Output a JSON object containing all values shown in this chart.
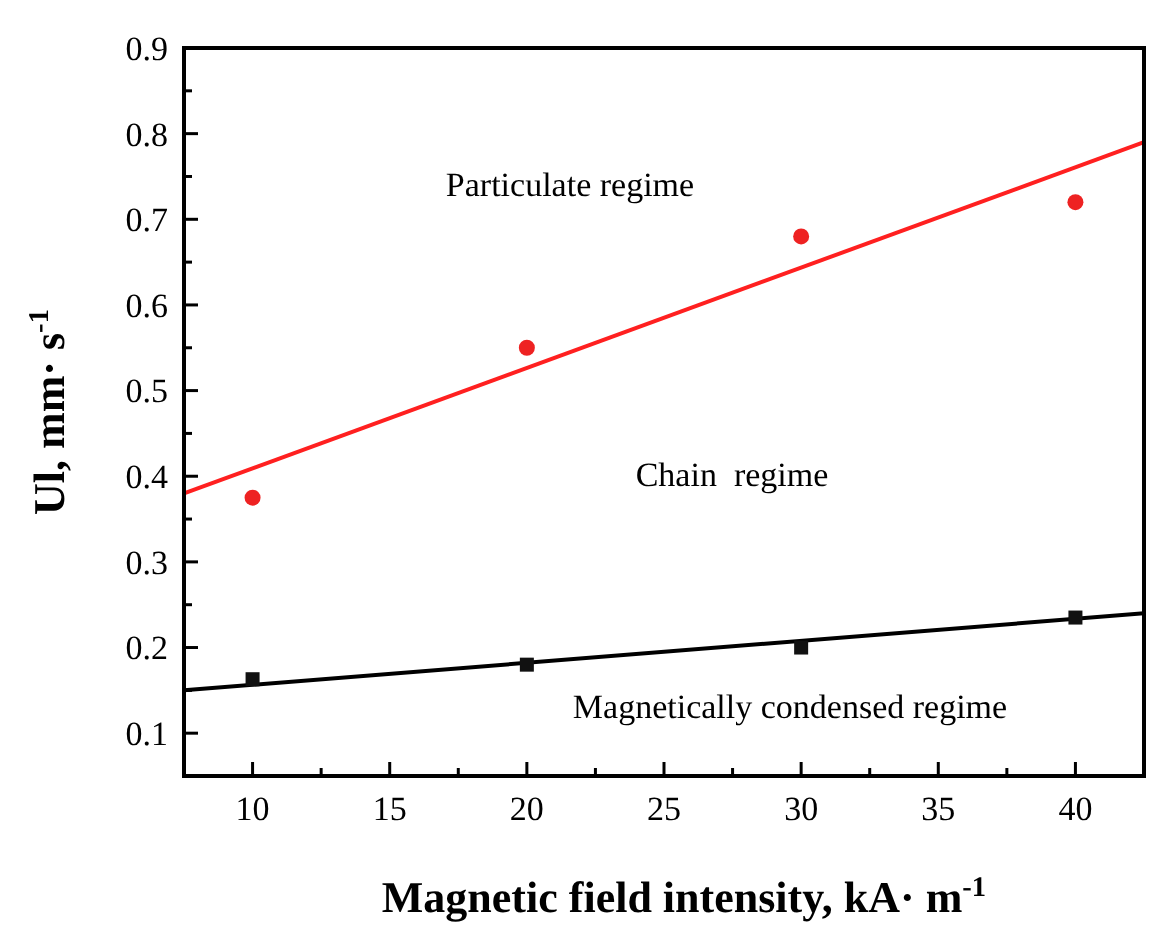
{
  "chart_data": {
    "type": "scatter",
    "xlabel": "Magnetic field intensity, kA· m$^{-1}$",
    "ylabel": "Ul, mm· s$^{-1}$",
    "xlim": [
      7.5,
      42.5
    ],
    "xticks": [
      10,
      15,
      20,
      25,
      30,
      35,
      40
    ],
    "ylim": [
      0.05,
      0.9
    ],
    "yticks": [
      0.1,
      0.2,
      0.3,
      0.4,
      0.5,
      0.6,
      0.7,
      0.8,
      0.9
    ],
    "grid": false,
    "series": [
      {
        "type": "line",
        "color": "#ff2020",
        "marker": "none",
        "x": [
          7.5,
          42.5
        ],
        "values": [
          0.38,
          0.79
        ]
      },
      {
        "type": "line",
        "color": "#000000",
        "marker": "none",
        "x": [
          7.5,
          42.5
        ],
        "values": [
          0.15,
          0.24
        ]
      },
      {
        "color": "#ee2222",
        "marker": "circle",
        "x": [
          10,
          20,
          30,
          40
        ],
        "values": [
          0.375,
          0.55,
          0.68,
          0.72
        ]
      },
      {
        "color": "#111111",
        "marker": "square",
        "x": [
          10,
          20,
          30,
          40
        ],
        "values": [
          0.163,
          0.18,
          0.2,
          0.235
        ]
      }
    ],
    "annotations": [
      "Particulate regime",
      "Chain  regime",
      "Magnetically condensed regime"
    ]
  }
}
